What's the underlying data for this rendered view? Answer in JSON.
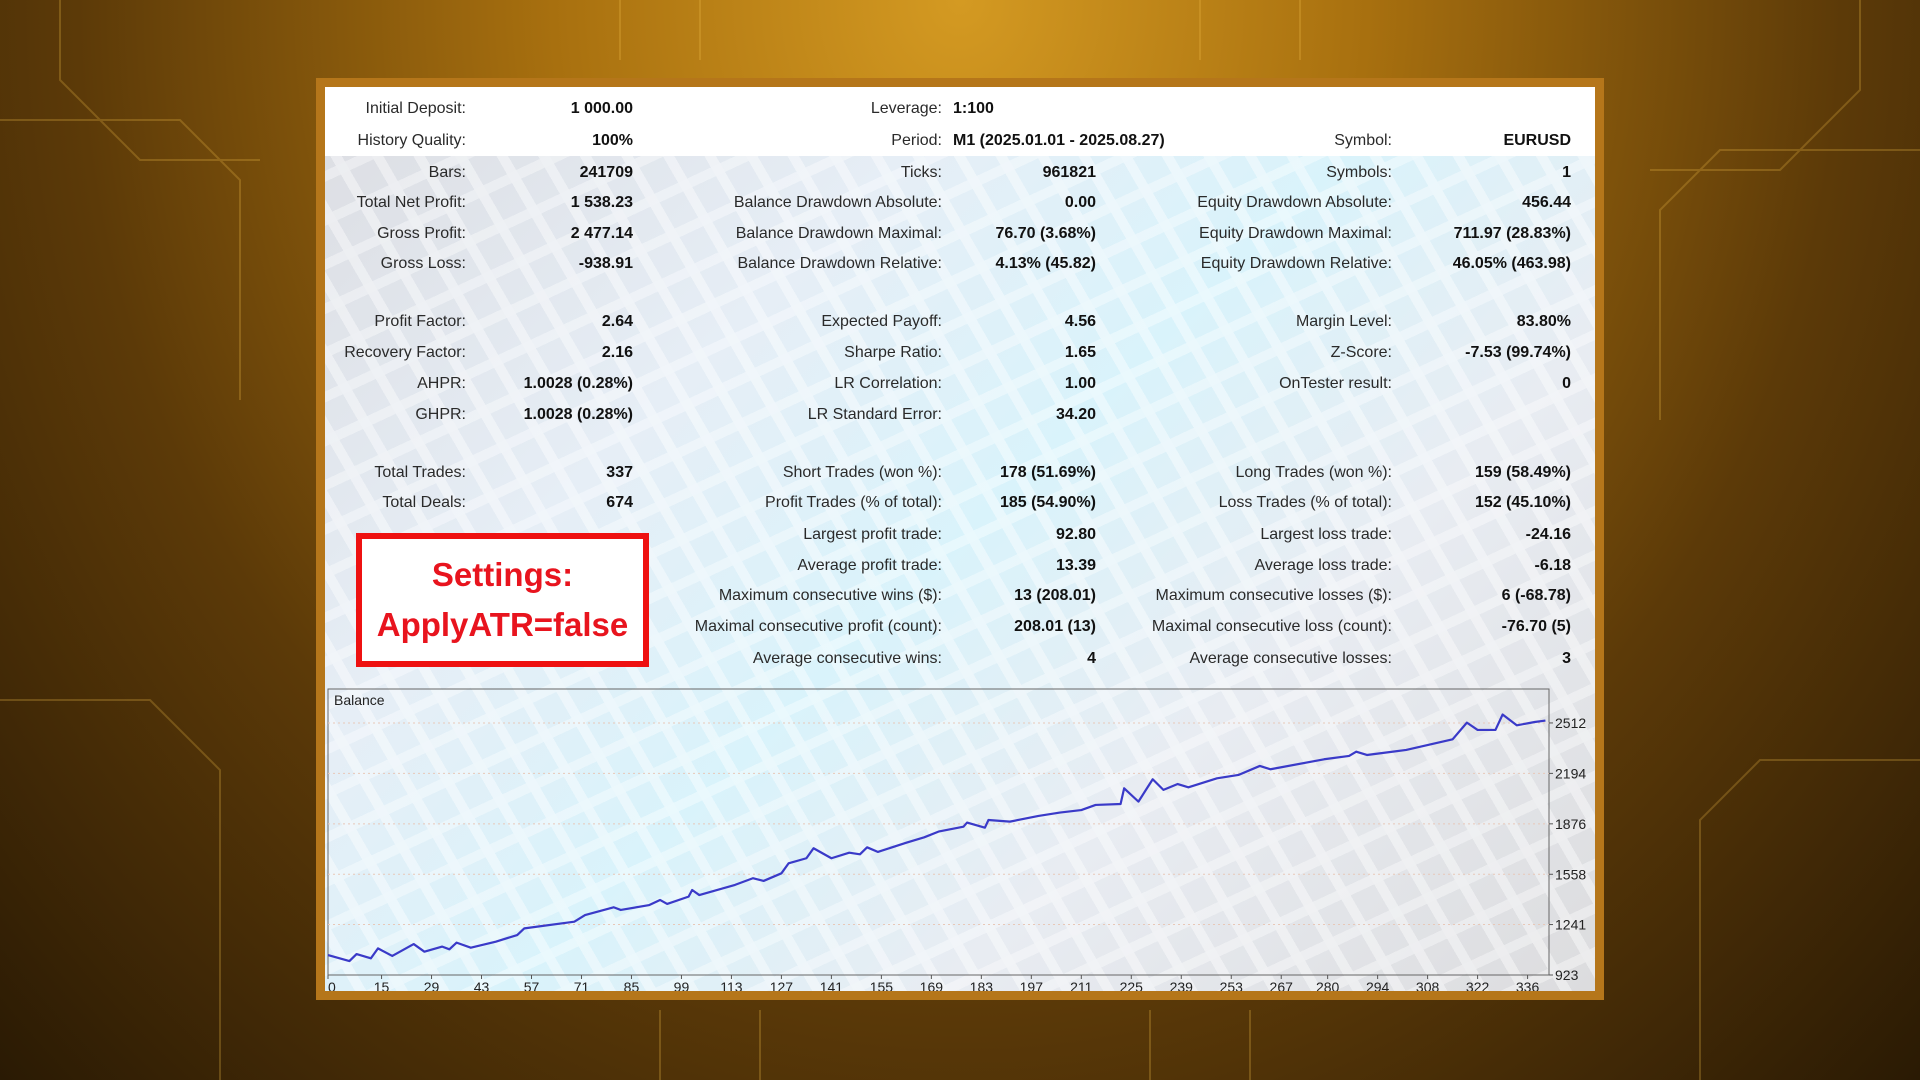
{
  "colors": {
    "frame": "#b5761a",
    "settings_border": "#ee1111",
    "settings_text": "#e8141e",
    "balance_line": "#3a3ac8"
  },
  "report": {
    "header_rows": [
      [
        [
          "Initial Deposit:",
          "1 000.00"
        ],
        [
          "Leverage:",
          "1:100"
        ],
        null
      ],
      [
        [
          "History Quality:",
          "100%"
        ],
        [
          "Period:",
          "M1 (2025.01.01 - 2025.08.27)"
        ],
        [
          "Symbol:",
          "EURUSD"
        ]
      ]
    ],
    "rows": [
      [
        [
          "Bars:",
          "241709"
        ],
        [
          "Ticks:",
          "961821"
        ],
        [
          "Symbols:",
          "1"
        ]
      ],
      [
        [
          "Total Net Profit:",
          "1 538.23"
        ],
        [
          "Balance Drawdown Absolute:",
          "0.00"
        ],
        [
          "Equity Drawdown Absolute:",
          "456.44"
        ]
      ],
      [
        [
          "Gross Profit:",
          "2 477.14"
        ],
        [
          "Balance Drawdown Maximal:",
          "76.70 (3.68%)"
        ],
        [
          "Equity Drawdown Maximal:",
          "711.97 (28.83%)"
        ]
      ],
      [
        [
          "Gross Loss:",
          "-938.91"
        ],
        [
          "Balance Drawdown Relative:",
          "4.13% (45.82)"
        ],
        [
          "Equity Drawdown Relative:",
          "46.05% (463.98)"
        ]
      ],
      null,
      [
        [
          "Profit Factor:",
          "2.64"
        ],
        [
          "Expected Payoff:",
          "4.56"
        ],
        [
          "Margin Level:",
          "83.80%"
        ]
      ],
      [
        [
          "Recovery Factor:",
          "2.16"
        ],
        [
          "Sharpe Ratio:",
          "1.65"
        ],
        [
          "Z-Score:",
          "-7.53 (99.74%)"
        ]
      ],
      [
        [
          "AHPR:",
          "1.0028 (0.28%)"
        ],
        [
          "LR Correlation:",
          "1.00"
        ],
        [
          "OnTester result:",
          "0"
        ]
      ],
      [
        [
          "GHPR:",
          "1.0028 (0.28%)"
        ],
        [
          "LR Standard Error:",
          "34.20"
        ],
        null
      ],
      null,
      [
        [
          "Total Trades:",
          "337"
        ],
        [
          "Short Trades (won %):",
          "178 (51.69%)"
        ],
        [
          "Long Trades (won %):",
          "159 (58.49%)"
        ]
      ],
      [
        [
          "Total Deals:",
          "674"
        ],
        [
          "Profit Trades (% of total):",
          "185 (54.90%)"
        ],
        [
          "Loss Trades (% of total):",
          "152 (45.10%)"
        ]
      ],
      [
        null,
        [
          "Largest profit trade:",
          "92.80"
        ],
        [
          "Largest loss trade:",
          "-24.16"
        ]
      ],
      [
        null,
        [
          "Average profit trade:",
          "13.39"
        ],
        [
          "Average loss trade:",
          "-6.18"
        ]
      ],
      [
        null,
        [
          "Maximum consecutive wins ($):",
          "13 (208.01)"
        ],
        [
          "Maximum consecutive losses ($):",
          "6 (-68.78)"
        ]
      ],
      [
        null,
        [
          "Maximal consecutive profit (count):",
          "208.01 (13)"
        ],
        [
          "Maximal consecutive loss (count):",
          "-76.70 (5)"
        ]
      ],
      [
        null,
        [
          "Average consecutive wins:",
          "4"
        ],
        [
          "Average consecutive losses:",
          "3"
        ]
      ]
    ]
  },
  "settings": {
    "line1": "Settings:",
    "line2": "ApplyATR=false"
  },
  "chart_data": {
    "type": "line",
    "title": "Balance",
    "x_ticks": [
      0,
      15,
      29,
      43,
      57,
      71,
      85,
      99,
      113,
      127,
      141,
      155,
      169,
      183,
      197,
      211,
      225,
      239,
      253,
      267,
      280,
      294,
      308,
      322,
      336
    ],
    "y_ticks": [
      923,
      1241,
      1558,
      1876,
      2194,
      2512
    ],
    "xlim": [
      0,
      342
    ],
    "ylim": [
      923,
      2726
    ],
    "grid": true,
    "series": [
      {
        "x": [
          0,
          6,
          8,
          12,
          14,
          18,
          24,
          27,
          32,
          34,
          36,
          40,
          47,
          53,
          55,
          69,
          72,
          80,
          82,
          90,
          93,
          95,
          101,
          102,
          104,
          114,
          119,
          122,
          127,
          129,
          134,
          136,
          141,
          146,
          149,
          151,
          154,
          162,
          167,
          171,
          178,
          179,
          184,
          185,
          191,
          199,
          205,
          211,
          215,
          222,
          223,
          227,
          231,
          234,
          238,
          241,
          249,
          255,
          261,
          264,
          279,
          286,
          288,
          291,
          302,
          315,
          319,
          322,
          327,
          329,
          333,
          338,
          341
        ],
        "y": [
          1049,
          1011,
          1055,
          1028,
          1091,
          1043,
          1118,
          1070,
          1102,
          1085,
          1127,
          1095,
          1133,
          1175,
          1217,
          1259,
          1301,
          1350,
          1333,
          1364,
          1396,
          1371,
          1417,
          1459,
          1427,
          1491,
          1533,
          1516,
          1564,
          1627,
          1659,
          1722,
          1659,
          1694,
          1684,
          1728,
          1699,
          1757,
          1791,
          1827,
          1858,
          1884,
          1852,
          1900,
          1890,
          1926,
          1947,
          1963,
          1995,
          2001,
          2100,
          2016,
          2157,
          2090,
          2127,
          2106,
          2163,
          2184,
          2241,
          2220,
          2283,
          2304,
          2331,
          2310,
          2342,
          2409,
          2514,
          2468,
          2468,
          2565,
          2497,
          2518,
          2527
        ]
      }
    ]
  }
}
